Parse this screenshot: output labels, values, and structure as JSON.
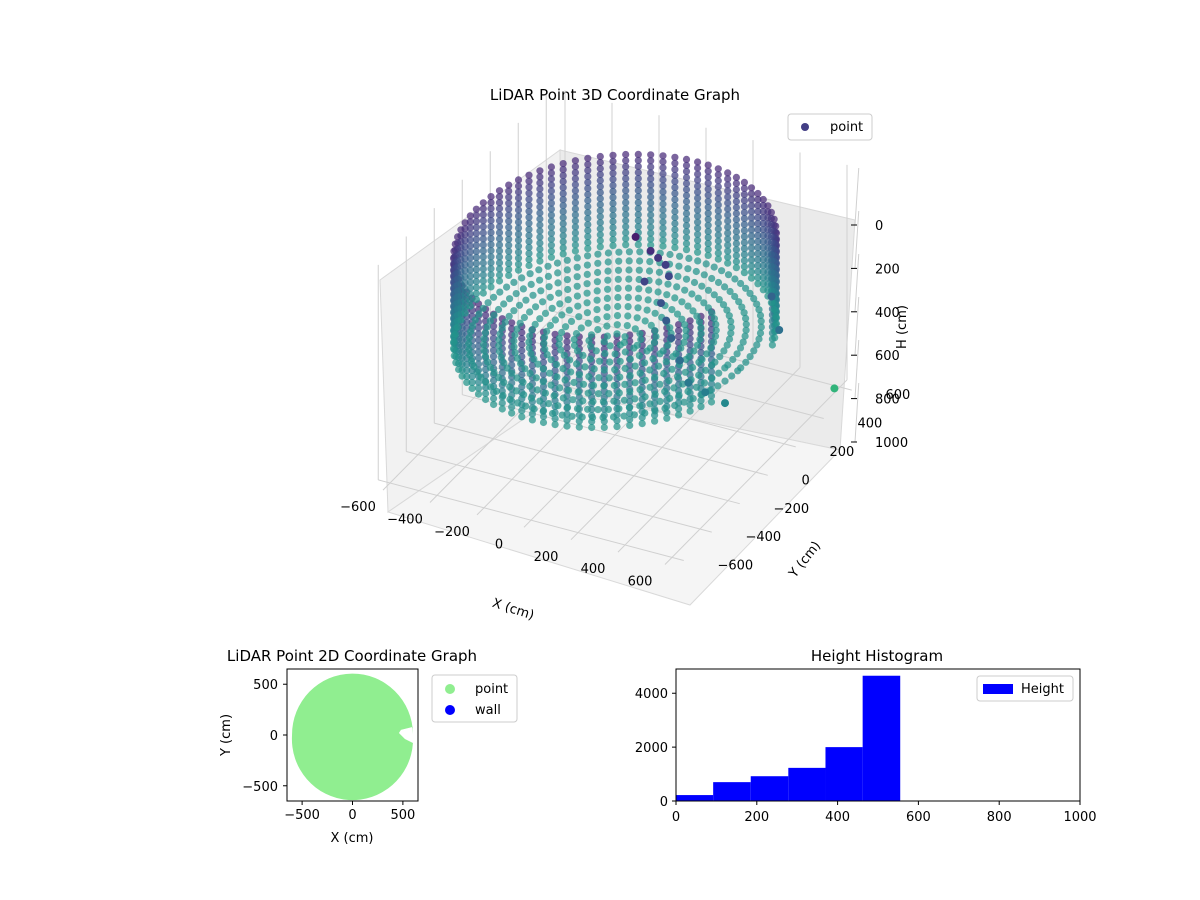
{
  "chart_data": [
    {
      "type": "scatter",
      "projection": "3d",
      "title": "LiDAR Point 3D Coordinate Graph",
      "xlabel": "X (cm)",
      "ylabel": "Y (cm)",
      "zlabel": "H (cm)",
      "xlim": [
        -650,
        650
      ],
      "ylim": [
        -650,
        650
      ],
      "zlim": [
        1000,
        0
      ],
      "xticks": [
        "−600",
        "−400",
        "−200",
        "0",
        "200",
        "400",
        "600"
      ],
      "yticks": [
        "−600",
        "−400",
        "−200",
        "0",
        "200",
        "400",
        "600"
      ],
      "zticks": [
        "0",
        "200",
        "400",
        "600",
        "800",
        "1000"
      ],
      "legend": {
        "location": "upper right",
        "entries": [
          "point"
        ]
      },
      "marker_color": "#433e85",
      "colormap": "viridis",
      "grid": true,
      "structure": {
        "description_only_for_rendering": false,
        "ring_radius": 590,
        "ring_height_range": [
          120,
          560
        ],
        "angular_gap_deg": [
          -20,
          15
        ]
      },
      "interior_points": [
        {
          "x": 40,
          "y": 80,
          "h": 120
        },
        {
          "x": 80,
          "y": 120,
          "h": 200
        },
        {
          "x": 100,
          "y": 140,
          "h": 240
        },
        {
          "x": 120,
          "y": 160,
          "h": 280
        },
        {
          "x": 140,
          "y": 150,
          "h": 320
        },
        {
          "x": 90,
          "y": 60,
          "h": 300
        },
        {
          "x": 160,
          "y": 60,
          "h": 380
        },
        {
          "x": 200,
          "y": 30,
          "h": 430
        },
        {
          "x": 240,
          "y": 0,
          "h": 480
        },
        {
          "x": 300,
          "y": -40,
          "h": 540
        },
        {
          "x": 360,
          "y": -80,
          "h": 600
        },
        {
          "x": 420,
          "y": -60,
          "h": 640
        },
        {
          "x": 480,
          "y": -20,
          "h": 700
        },
        {
          "x": 600,
          "y": 560,
          "h": 980
        },
        {
          "x": 520,
          "y": 300,
          "h": 560
        },
        {
          "x": 440,
          "y": 380,
          "h": 480
        }
      ]
    },
    {
      "type": "scatter",
      "title": "LiDAR Point 2D Coordinate Graph",
      "xlabel": "X (cm)",
      "ylabel": "Y (cm)",
      "xlim": [
        -650,
        650
      ],
      "ylim": [
        -650,
        650
      ],
      "xticks": [
        -500,
        0,
        500
      ],
      "yticks": [
        -500,
        0,
        500
      ],
      "legend": {
        "location": "outside right",
        "entries": [
          {
            "name": "point",
            "color": "#90ee90"
          },
          {
            "name": "wall",
            "color": "#0000ff"
          }
        ]
      },
      "point_region": {
        "shape": "disc",
        "radius": 600,
        "color": "#90ee90"
      }
    },
    {
      "type": "bar",
      "title": "Height Histogram",
      "xlim": [
        0,
        1000
      ],
      "ylim": [
        0,
        4900
      ],
      "xticks": [
        0,
        200,
        400,
        600,
        800,
        1000
      ],
      "yticks": [
        0,
        2000,
        4000
      ],
      "color": "#0000ff",
      "legend": {
        "location": "upper right",
        "entries": [
          "Height"
        ]
      },
      "bins": [
        {
          "from": 0,
          "to": 92,
          "count": 220
        },
        {
          "from": 92,
          "to": 185,
          "count": 700
        },
        {
          "from": 185,
          "to": 278,
          "count": 920
        },
        {
          "from": 278,
          "to": 370,
          "count": 1230
        },
        {
          "from": 370,
          "to": 462,
          "count": 2000
        },
        {
          "from": 462,
          "to": 555,
          "count": 4650
        }
      ]
    }
  ]
}
